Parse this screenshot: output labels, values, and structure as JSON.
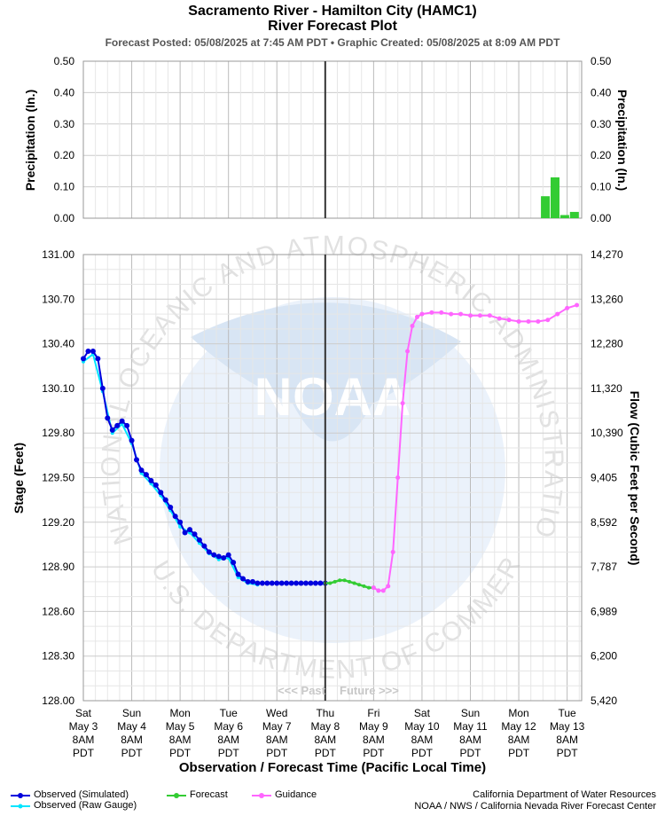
{
  "header": {
    "title": "Sacramento River - Hamilton City (HAMC1)",
    "subtitle": "River Forecast Plot",
    "meta": "Forecast Posted: 05/08/2025 at 7:45 AM PDT  •  Graphic Created: 05/08/2025 at 8:09 AM PDT"
  },
  "colors": {
    "observed": "#0000dd",
    "raw_gauge": "#00e5ff",
    "forecast": "#33cc33",
    "guidance": "#ff66ff",
    "now_line": "#333333",
    "grid": "#cccccc"
  },
  "chart_data": [
    {
      "type": "bar",
      "name": "precipitation",
      "ylabel_left": "Precipitation (In.)",
      "ylabel_right": "Precipitation (In.)",
      "ylim": [
        0,
        0.5
      ],
      "yticks": [
        "0.00",
        "0.10",
        "0.20",
        "0.30",
        "0.40",
        "0.50"
      ],
      "grid": true,
      "bars_time_days": [
        9.55,
        9.75,
        9.95,
        10.15
      ],
      "bars_values": [
        0.07,
        0.13,
        0.01,
        0.02
      ]
    },
    {
      "type": "line",
      "name": "stage_flow",
      "ylabel_left": "Stage (Feet)",
      "ylabel_right": "Flow (Cubic Feet per Second)",
      "ylim": [
        128.0,
        131.0
      ],
      "yticks_left": [
        "128.00",
        "128.30",
        "128.60",
        "128.90",
        "129.20",
        "129.50",
        "129.80",
        "130.10",
        "130.40",
        "130.70",
        "131.00"
      ],
      "yticks_right": [
        "5,420",
        "6,200",
        "6,989",
        "7,787",
        "8,592",
        "9,405",
        "10,390",
        "11,320",
        "12,280",
        "13,260",
        "14,270"
      ],
      "xlabel": "Observation / Forecast Time (Pacific Local Time)",
      "x_ticks": [
        {
          "day": "Sat",
          "date": "May 3",
          "time": "8AM",
          "tz": "PDT"
        },
        {
          "day": "Sun",
          "date": "May 4",
          "time": "8AM",
          "tz": "PDT"
        },
        {
          "day": "Mon",
          "date": "May 5",
          "time": "8AM",
          "tz": "PDT"
        },
        {
          "day": "Tue",
          "date": "May 6",
          "time": "8AM",
          "tz": "PDT"
        },
        {
          "day": "Wed",
          "date": "May 7",
          "time": "8AM",
          "tz": "PDT"
        },
        {
          "day": "Thu",
          "date": "May 8",
          "time": "8AM",
          "tz": "PDT"
        },
        {
          "day": "Fri",
          "date": "May 9",
          "time": "8AM",
          "tz": "PDT"
        },
        {
          "day": "Sat",
          "date": "May 10",
          "time": "8AM",
          "tz": "PDT"
        },
        {
          "day": "Sun",
          "date": "May 11",
          "time": "8AM",
          "tz": "PDT"
        },
        {
          "day": "Mon",
          "date": "May 12",
          "time": "8AM",
          "tz": "PDT"
        },
        {
          "day": "Tue",
          "date": "May 13",
          "time": "8AM",
          "tz": "PDT"
        }
      ],
      "x_range_days": [
        0,
        10.3
      ],
      "now_day": 5.0,
      "past_label": "<<< Past",
      "future_label": "Future >>>",
      "series": [
        {
          "name": "Observed (Simulated)",
          "x": [
            0,
            0.1,
            0.2,
            0.3,
            0.4,
            0.5,
            0.6,
            0.7,
            0.8,
            0.9,
            1.0,
            1.1,
            1.2,
            1.3,
            1.4,
            1.5,
            1.6,
            1.7,
            1.8,
            1.9,
            2.0,
            2.1,
            2.2,
            2.3,
            2.4,
            2.5,
            2.6,
            2.7,
            2.8,
            2.9,
            3.0,
            3.1,
            3.2,
            3.3,
            3.4,
            3.5,
            3.6,
            3.7,
            3.8,
            3.9,
            4.0,
            4.1,
            4.2,
            4.3,
            4.4,
            4.5,
            4.6,
            4.7,
            4.8,
            4.9,
            5.0
          ],
          "y": [
            130.3,
            130.35,
            130.35,
            130.3,
            130.1,
            129.9,
            129.82,
            129.85,
            129.88,
            129.85,
            129.75,
            129.62,
            129.55,
            129.52,
            129.48,
            129.45,
            129.4,
            129.35,
            129.3,
            129.24,
            129.2,
            129.13,
            129.15,
            129.12,
            129.08,
            129.04,
            129.0,
            128.98,
            128.97,
            128.96,
            128.98,
            128.93,
            128.85,
            128.82,
            128.8,
            128.8,
            128.79,
            128.79,
            128.79,
            128.79,
            128.79,
            128.79,
            128.79,
            128.79,
            128.79,
            128.79,
            128.79,
            128.79,
            128.79,
            128.79,
            128.79
          ]
        },
        {
          "name": "Observed (Raw Gauge)",
          "x": [
            0,
            0.2,
            0.4,
            0.6,
            0.8,
            1.0,
            1.2,
            1.4,
            1.6,
            1.8,
            2.0,
            2.2,
            2.4,
            2.6,
            2.8,
            3.0,
            3.2,
            3.4,
            3.6
          ],
          "y": [
            130.28,
            130.33,
            130.08,
            129.8,
            129.86,
            129.73,
            129.53,
            129.46,
            129.38,
            129.28,
            129.17,
            129.13,
            129.06,
            128.99,
            128.95,
            128.96,
            128.83,
            128.79,
            128.78
          ]
        },
        {
          "name": "Forecast",
          "x": [
            5.0,
            5.1,
            5.2,
            5.3,
            5.4,
            5.5,
            5.6,
            5.7,
            5.8,
            5.9,
            6.0
          ],
          "y": [
            128.79,
            128.79,
            128.8,
            128.81,
            128.81,
            128.8,
            128.79,
            128.78,
            128.77,
            128.76,
            128.76
          ]
        },
        {
          "name": "Guidance",
          "x": [
            6.0,
            6.1,
            6.2,
            6.3,
            6.4,
            6.5,
            6.6,
            6.7,
            6.8,
            6.9,
            7.0,
            7.2,
            7.4,
            7.6,
            7.8,
            8.0,
            8.2,
            8.4,
            8.6,
            8.8,
            9.0,
            9.2,
            9.4,
            9.6,
            9.8,
            10.0,
            10.2
          ],
          "y": [
            128.76,
            128.74,
            128.74,
            128.77,
            129.0,
            129.5,
            130.0,
            130.35,
            130.52,
            130.58,
            130.6,
            130.61,
            130.61,
            130.6,
            130.6,
            130.59,
            130.59,
            130.59,
            130.57,
            130.56,
            130.55,
            130.55,
            130.55,
            130.56,
            130.6,
            130.64,
            130.66
          ]
        }
      ]
    }
  ],
  "legend": {
    "observed_sim": "Observed (Simulated)",
    "observed_raw": "Observed (Raw Gauge)",
    "forecast": "Forecast",
    "guidance": "Guidance"
  },
  "credits": {
    "line1": "California Department of Water Resources",
    "line2": "NOAA / NWS / California Nevada River Forecast Center"
  },
  "watermark": {
    "logo_text": "NOAA",
    "ring_text": "NATIONAL OCEANIC AND ATMOSPHERIC ADMINISTRATION • U.S. DEPARTMENT OF COMMERCE"
  }
}
